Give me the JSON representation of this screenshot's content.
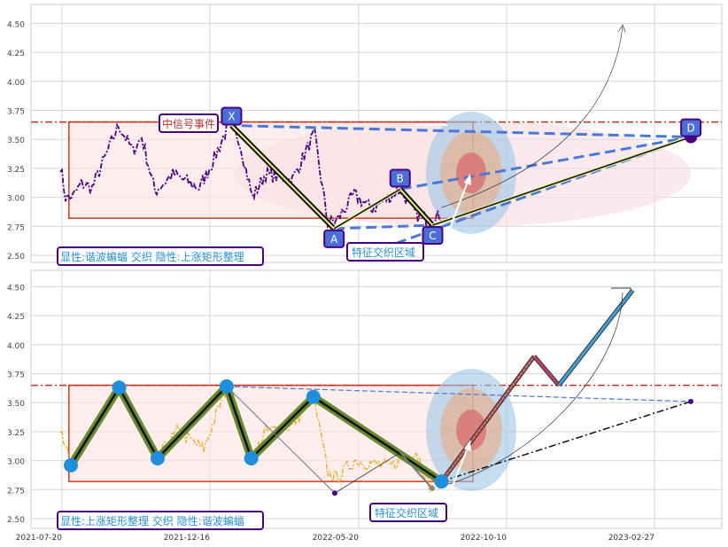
{
  "chart_data": [
    {
      "type": "line",
      "panel": "top",
      "ylim": [
        2.42,
        4.65
      ],
      "yticks": [
        "2.50",
        "2.75",
        "3.00",
        "3.25",
        "3.50",
        "3.75",
        "4.00",
        "4.25",
        "4.50"
      ],
      "grid": true,
      "resistance_level": 3.65,
      "rectangle": {
        "x_from": "2021-07-27",
        "x_to": "2022-09-10",
        "y_low": 2.82,
        "y_high": 3.65
      },
      "pattern_points": [
        {
          "label": "X",
          "date": "2022-01-08",
          "value": 3.62
        },
        {
          "label": "A",
          "date": "2022-04-22",
          "value": 2.73
        },
        {
          "label": "B",
          "date": "2022-06-28",
          "value": 3.07
        },
        {
          "label": "C",
          "date": "2022-07-31",
          "value": 2.76
        },
        {
          "label": "D",
          "date": "2023-04-19",
          "value": 3.52
        }
      ],
      "annotations": [
        "中信号事件",
        "显性:谐波蝙蝠 交织 隐性:上涨矩形整理",
        "特征交织区域"
      ]
    },
    {
      "type": "line",
      "panel": "bottom",
      "ylim": [
        2.42,
        4.65
      ],
      "yticks": [
        "2.50",
        "2.75",
        "3.00",
        "3.25",
        "3.50",
        "3.75",
        "4.00",
        "4.25",
        "4.50"
      ],
      "xticks": [
        "2021-07-20",
        "2021-12-16",
        "2022-05-20",
        "2022-10-10",
        "2023-02-27"
      ],
      "grid": true,
      "resistance_level": 3.65,
      "rectangle": {
        "x_from": "2021-07-27",
        "x_to": "2022-09-10",
        "y_low": 2.82,
        "y_high": 3.65
      },
      "pattern_points": [
        {
          "date": "2021-07-29",
          "value": 2.96
        },
        {
          "date": "2021-09-16",
          "value": 3.63
        },
        {
          "date": "2021-10-25",
          "value": 3.02
        },
        {
          "date": "2022-01-03",
          "value": 3.64
        },
        {
          "date": "2022-01-28",
          "value": 3.02
        },
        {
          "date": "2022-04-01",
          "value": 3.55
        },
        {
          "date": "2022-08-09",
          "value": 2.82
        }
      ],
      "projection": [
        {
          "date": "2022-08-09",
          "value": 2.82
        },
        {
          "date": "2022-11-11",
          "value": 3.9
        },
        {
          "date": "2022-12-06",
          "value": 3.65
        },
        {
          "date": "2023-02-19",
          "value": 4.47
        }
      ],
      "annotations": [
        "显性:上涨矩形整理 交织 隐性:谐波蝙蝠",
        "特征交织区域"
      ]
    }
  ],
  "colors": {
    "rect_edge": "#d03a1e",
    "rect_fill": "#fbe3e3",
    "resistance": "#c8301e",
    "top_series": "#4b0082",
    "bottom_series": "#f0a820",
    "marker_blue": "#1f8fdc",
    "label_box": "#4a6fd8",
    "label_border": "#4b0082",
    "dash_blue": "#4a78d8",
    "annotation_text": "#2a8fd0"
  }
}
